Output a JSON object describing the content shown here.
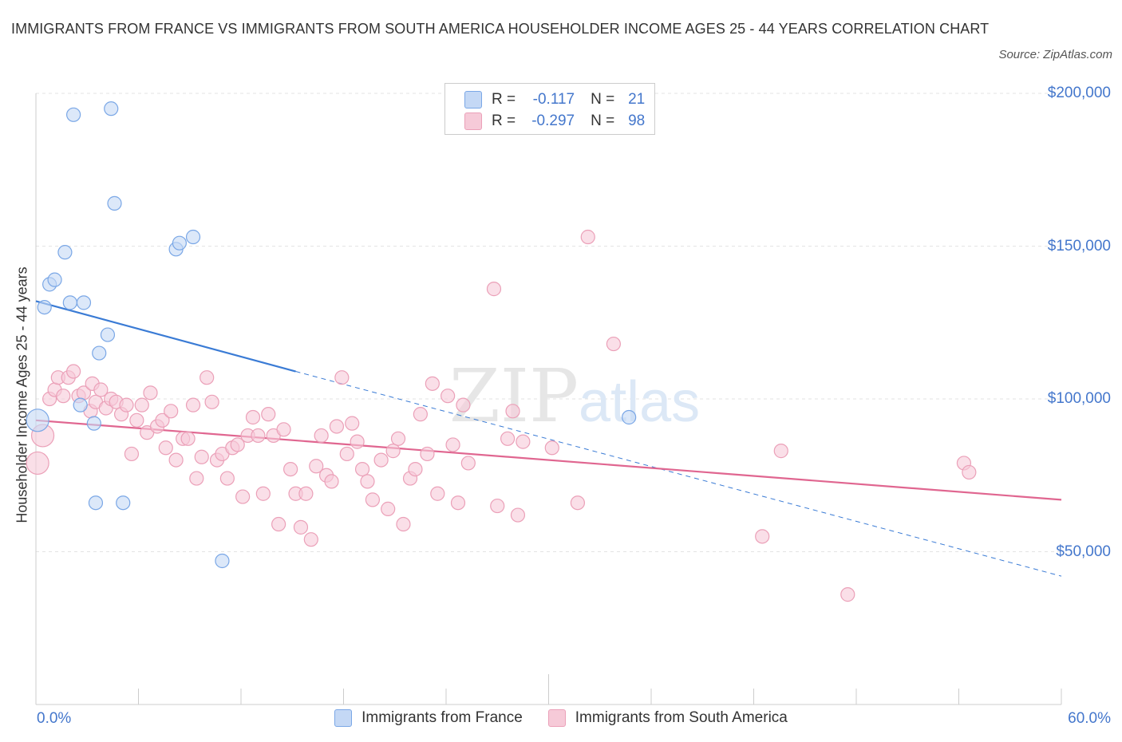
{
  "chart_data": {
    "type": "scatter",
    "title": "IMMIGRANTS FROM FRANCE VS IMMIGRANTS FROM SOUTH AMERICA HOUSEHOLDER INCOME AGES 25 - 44 YEARS CORRELATION CHART",
    "source": "Source: ZipAtlas.com",
    "ylabel": "Householder Income Ages 25 - 44 years",
    "xlim": [
      0,
      60
    ],
    "ylim": [
      0,
      200000
    ],
    "x_tick_labels": [
      "0.0%",
      "60.0%"
    ],
    "y_ticks": [
      {
        "value": 200000,
        "label": "$200,000"
      },
      {
        "value": 150000,
        "label": "$150,000"
      },
      {
        "value": 100000,
        "label": "$100,000"
      },
      {
        "value": 50000,
        "label": "$50,000"
      }
    ],
    "watermark": "ZIPatlas",
    "legend": [
      {
        "r_label": "R =",
        "r_value": "-0.117",
        "n_label": "N =",
        "n_value": "21"
      },
      {
        "r_label": "R =",
        "r_value": "-0.297",
        "n_label": "N =",
        "n_value": "98"
      }
    ],
    "series": [
      {
        "name": "Immigrants from France",
        "color": "#7aa7e6",
        "fill": "#c4d8f5",
        "line_color": "#3a7bd5",
        "trend": {
          "x0": 0,
          "y0": 132000,
          "x_solid_end": 15.2,
          "y_solid_end": 109000,
          "x1": 60,
          "y1": 42000
        },
        "points": [
          {
            "x": 0.1,
            "y": 93000,
            "big": true
          },
          {
            "x": 0.5,
            "y": 130000
          },
          {
            "x": 0.8,
            "y": 137500
          },
          {
            "x": 1.1,
            "y": 139000
          },
          {
            "x": 1.7,
            "y": 148000
          },
          {
            "x": 2.0,
            "y": 131500
          },
          {
            "x": 2.2,
            "y": 193000
          },
          {
            "x": 2.6,
            "y": 98000
          },
          {
            "x": 2.8,
            "y": 131500
          },
          {
            "x": 3.4,
            "y": 92000
          },
          {
            "x": 3.5,
            "y": 66000
          },
          {
            "x": 3.7,
            "y": 115000
          },
          {
            "x": 4.2,
            "y": 121000
          },
          {
            "x": 4.4,
            "y": 195000
          },
          {
            "x": 4.6,
            "y": 164000
          },
          {
            "x": 5.1,
            "y": 66000
          },
          {
            "x": 8.2,
            "y": 149000
          },
          {
            "x": 8.4,
            "y": 151000
          },
          {
            "x": 9.2,
            "y": 153000
          },
          {
            "x": 10.9,
            "y": 47000
          },
          {
            "x": 34.7,
            "y": 94000
          }
        ]
      },
      {
        "name": "Immigrants from South America",
        "color": "#eba0b8",
        "fill": "#f6cad8",
        "line_color": "#e06690",
        "trend": {
          "x0": 0,
          "y0": 93000,
          "x1": 60,
          "y1": 67000
        },
        "points": [
          {
            "x": 0.1,
            "y": 79000,
            "big": true
          },
          {
            "x": 0.4,
            "y": 88000,
            "big": true
          },
          {
            "x": 0.8,
            "y": 100000
          },
          {
            "x": 1.1,
            "y": 103000
          },
          {
            "x": 1.3,
            "y": 107000
          },
          {
            "x": 1.6,
            "y": 101000
          },
          {
            "x": 1.9,
            "y": 107000
          },
          {
            "x": 2.2,
            "y": 109000
          },
          {
            "x": 2.5,
            "y": 101000
          },
          {
            "x": 2.8,
            "y": 102000
          },
          {
            "x": 3.2,
            "y": 96000
          },
          {
            "x": 3.3,
            "y": 105000
          },
          {
            "x": 3.5,
            "y": 99000
          },
          {
            "x": 3.8,
            "y": 103000
          },
          {
            "x": 4.1,
            "y": 97000
          },
          {
            "x": 4.4,
            "y": 100000
          },
          {
            "x": 4.7,
            "y": 99000
          },
          {
            "x": 5.0,
            "y": 95000
          },
          {
            "x": 5.3,
            "y": 98000
          },
          {
            "x": 5.6,
            "y": 82000
          },
          {
            "x": 5.9,
            "y": 93000
          },
          {
            "x": 6.2,
            "y": 98000
          },
          {
            "x": 6.5,
            "y": 89000
          },
          {
            "x": 6.7,
            "y": 102000
          },
          {
            "x": 7.1,
            "y": 91000
          },
          {
            "x": 7.4,
            "y": 93000
          },
          {
            "x": 7.6,
            "y": 84000
          },
          {
            "x": 7.9,
            "y": 96000
          },
          {
            "x": 8.2,
            "y": 80000
          },
          {
            "x": 8.6,
            "y": 87000
          },
          {
            "x": 8.9,
            "y": 87000
          },
          {
            "x": 9.2,
            "y": 98000
          },
          {
            "x": 9.4,
            "y": 74000
          },
          {
            "x": 9.7,
            "y": 81000
          },
          {
            "x": 10.0,
            "y": 107000
          },
          {
            "x": 10.3,
            "y": 99000
          },
          {
            "x": 10.6,
            "y": 80000
          },
          {
            "x": 10.9,
            "y": 82000
          },
          {
            "x": 11.2,
            "y": 74000
          },
          {
            "x": 11.5,
            "y": 84000
          },
          {
            "x": 11.8,
            "y": 85000
          },
          {
            "x": 12.1,
            "y": 68000
          },
          {
            "x": 12.4,
            "y": 88000
          },
          {
            "x": 12.7,
            "y": 94000
          },
          {
            "x": 13.0,
            "y": 88000
          },
          {
            "x": 13.3,
            "y": 69000
          },
          {
            "x": 13.6,
            "y": 95000
          },
          {
            "x": 13.9,
            "y": 88000
          },
          {
            "x": 14.2,
            "y": 59000
          },
          {
            "x": 14.5,
            "y": 90000
          },
          {
            "x": 14.9,
            "y": 77000
          },
          {
            "x": 15.2,
            "y": 69000
          },
          {
            "x": 15.5,
            "y": 58000
          },
          {
            "x": 15.8,
            "y": 69000
          },
          {
            "x": 16.1,
            "y": 54000
          },
          {
            "x": 16.4,
            "y": 78000
          },
          {
            "x": 16.7,
            "y": 88000
          },
          {
            "x": 17.0,
            "y": 75000
          },
          {
            "x": 17.3,
            "y": 73000
          },
          {
            "x": 17.6,
            "y": 91000
          },
          {
            "x": 17.9,
            "y": 107000
          },
          {
            "x": 18.2,
            "y": 82000
          },
          {
            "x": 18.5,
            "y": 92000
          },
          {
            "x": 18.8,
            "y": 86000
          },
          {
            "x": 19.1,
            "y": 77000
          },
          {
            "x": 19.4,
            "y": 73000
          },
          {
            "x": 19.7,
            "y": 67000
          },
          {
            "x": 20.2,
            "y": 80000
          },
          {
            "x": 20.6,
            "y": 64000
          },
          {
            "x": 20.9,
            "y": 83000
          },
          {
            "x": 21.2,
            "y": 87000
          },
          {
            "x": 21.5,
            "y": 59000
          },
          {
            "x": 21.9,
            "y": 74000
          },
          {
            "x": 22.2,
            "y": 77000
          },
          {
            "x": 22.5,
            "y": 95000
          },
          {
            "x": 22.9,
            "y": 82000
          },
          {
            "x": 23.2,
            "y": 105000
          },
          {
            "x": 23.5,
            "y": 69000
          },
          {
            "x": 24.1,
            "y": 101000
          },
          {
            "x": 24.4,
            "y": 85000
          },
          {
            "x": 24.7,
            "y": 66000
          },
          {
            "x": 25.0,
            "y": 98000
          },
          {
            "x": 25.3,
            "y": 79000
          },
          {
            "x": 26.8,
            "y": 136000
          },
          {
            "x": 27.0,
            "y": 65000
          },
          {
            "x": 27.6,
            "y": 87000
          },
          {
            "x": 27.9,
            "y": 96000
          },
          {
            "x": 28.2,
            "y": 62000
          },
          {
            "x": 28.5,
            "y": 86000
          },
          {
            "x": 30.2,
            "y": 84000
          },
          {
            "x": 31.7,
            "y": 66000
          },
          {
            "x": 32.3,
            "y": 153000
          },
          {
            "x": 33.8,
            "y": 118000
          },
          {
            "x": 42.5,
            "y": 55000
          },
          {
            "x": 43.6,
            "y": 83000
          },
          {
            "x": 47.5,
            "y": 36000
          },
          {
            "x": 54.3,
            "y": 79000
          },
          {
            "x": 54.6,
            "y": 76000
          }
        ]
      }
    ]
  }
}
